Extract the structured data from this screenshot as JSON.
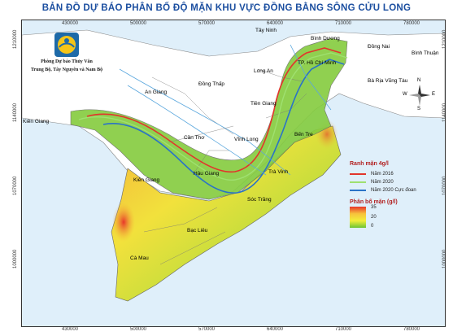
{
  "title": "BẢN ĐỒ DỰ BÁO PHÂN BỐ ĐỘ MẶN KHU VỰC ĐỒNG BẰNG SÔNG CỬU LONG",
  "agency": {
    "line1": "Phòng Dự báo Thủy Văn",
    "line2": "Trung Bộ, Tây Nguyên và Nam Bộ"
  },
  "x_ticks": [
    "430000",
    "500000",
    "570000",
    "640000",
    "710000",
    "780000"
  ],
  "y_ticks": [
    "1210000",
    "1140000",
    "1070000",
    "1000000"
  ],
  "compass": {
    "n": "N",
    "e": "E",
    "s": "S",
    "w": "W"
  },
  "provinces": {
    "tay_ninh": "Tây Ninh",
    "binh_duong": "Bình Dương",
    "dong_nai": "Đồng Nai",
    "binh_thuan": "Bình Thuận",
    "hcm": "TP. Hồ Chí Minh",
    "long_an": "Long An",
    "brvt": "Bà Rịa Vũng Tàu",
    "an_giang": "An Giang",
    "dong_thap": "Đồng Thấp",
    "tien_giang": "Tiền Giang",
    "kien_giang_top": "Kiên Giang",
    "can_tho": "Cần Thơ",
    "vinh_long": "Vĩnh Long",
    "ben_tre": "Bến Tre",
    "kien_giang": "Kiên Giang",
    "hau_giang": "Hậu Giang",
    "tra_vinh": "Trà Vinh",
    "soc_trang": "Sóc Trăng",
    "bac_lieu": "Bạc Liêu",
    "ca_mau": "Cà Mau"
  },
  "legend": {
    "salinity_title": "Ranh mặn 4g/l",
    "lines": [
      {
        "label": "Năm 2016",
        "color": "#e2352c"
      },
      {
        "label": "Năm 2020",
        "color": "#9fe070"
      },
      {
        "label": "Năm 2020 Cực đoan",
        "color": "#2a73c7"
      }
    ],
    "ramp_title": "Phân bố mặn (g/l)",
    "ramp_values": [
      "35",
      "20",
      "0"
    ]
  },
  "colors": {
    "land": "#ffffff",
    "sea": "#dfeffa",
    "title": "#1c4fa0",
    "saline_low": "#6cc436",
    "saline_mid": "#f2ee3a",
    "saline_high": "#e8362a"
  }
}
